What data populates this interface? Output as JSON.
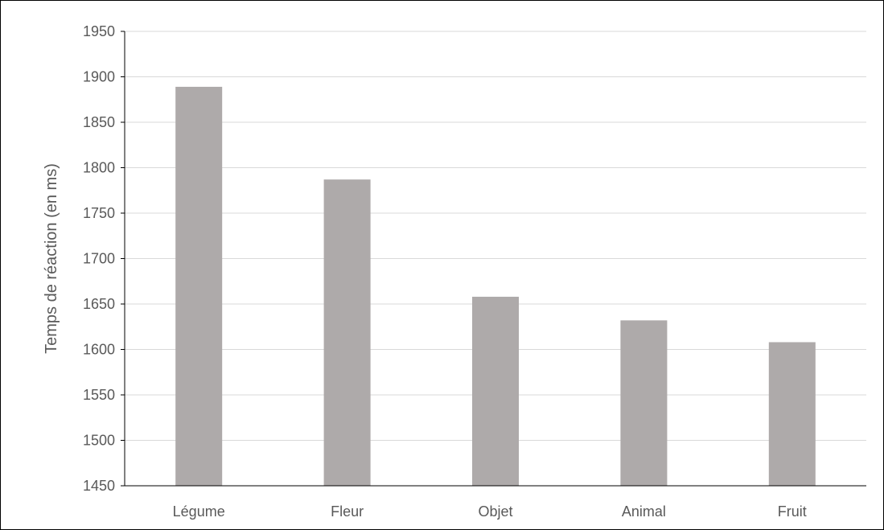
{
  "chart_data": {
    "type": "bar",
    "title": "",
    "xlabel": "",
    "ylabel": "Temps de réaction (en ms)",
    "categories": [
      "Légume",
      "Fleur",
      "Objet",
      "Animal",
      "Fruit"
    ],
    "values": [
      1889,
      1787,
      1658,
      1632,
      1608
    ],
    "ylim": [
      1450,
      1950
    ],
    "yticks": [
      1450,
      1500,
      1550,
      1600,
      1650,
      1700,
      1750,
      1800,
      1850,
      1900,
      1950
    ],
    "grid": true,
    "legend": "none",
    "colors": {
      "bar": "#AEAAAA",
      "grid": "#D9D9D9",
      "axis": "#000000",
      "text": "#595959",
      "frame": "#000000"
    }
  }
}
